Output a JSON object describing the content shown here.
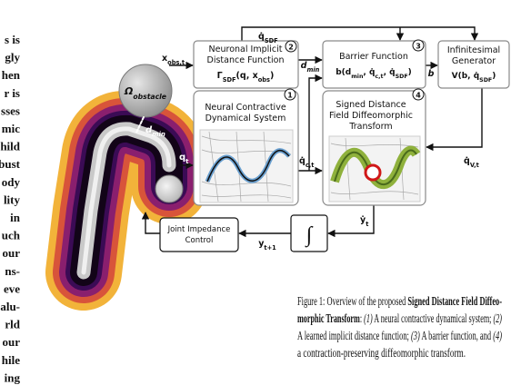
{
  "side_text": [
    "s is",
    "gly",
    "hen",
    "r is",
    "sses",
    "mic",
    "hild",
    "bust",
    "ody",
    "lity",
    "in",
    "uch",
    "our",
    "ns-",
    "eve",
    "alu-",
    "rld",
    "our",
    "hile",
    "ing"
  ],
  "figure": {
    "obstacle_label": [
      "Ω",
      "obstacle"
    ],
    "robot_d_min": [
      "d",
      "min"
    ],
    "robot_q_t": [
      "q",
      "t"
    ],
    "boxes": {
      "distance": {
        "number": "2",
        "title": [
          "Neuronal Implicit",
          "Distance Function"
        ],
        "formula": [
          "Γ",
          "SDF",
          "(q, x",
          "obs",
          ")"
        ]
      },
      "barrier": {
        "number": "3",
        "title": [
          "Barrier Function"
        ],
        "formula": [
          "b(d",
          "min",
          ", q̇",
          "c,t",
          ", q̇",
          "SDF",
          ")"
        ]
      },
      "generator": {
        "title": [
          "Infinitesimal",
          "Generator"
        ],
        "formula": [
          "V(b, q̇",
          "SDF",
          ")"
        ]
      },
      "contractive": {
        "number": "1",
        "title": [
          "Neural Contractive",
          "Dynamical System"
        ]
      },
      "diffeomorphic": {
        "number": "4",
        "title": [
          "Signed Distance",
          "Field Diffeomorphic",
          "Transform"
        ]
      },
      "impedance": {
        "title": [
          "Joint Impedance",
          "Control"
        ]
      },
      "integrator": {
        "symbol": "∫"
      }
    },
    "signals": {
      "x_obs": [
        "x",
        "obs,t"
      ],
      "q_sdf": [
        "q̇",
        "SDF"
      ],
      "d_min": [
        "d",
        "min"
      ],
      "b": [
        "b"
      ],
      "q_v": [
        "q̇",
        "V,t"
      ],
      "q_c": [
        "q̇",
        "c,t"
      ],
      "y_dot": [
        "ẏ",
        "t"
      ],
      "y_next": [
        "y",
        "t+1"
      ]
    }
  },
  "caption": [
    [
      "Figure 1: Overview of the proposed ",
      "Signed Distance Field Diffeo-"
    ],
    [
      "morphic Transform",
      ": ",
      "(1)",
      " A neural contractive dynamical system; ",
      "(2)"
    ],
    [
      "A learned implicit distance function; ",
      "(3)",
      " A barrier function, and ",
      "(4)"
    ],
    [
      "a contraction-preserving diffeomorphic transform."
    ]
  ]
}
